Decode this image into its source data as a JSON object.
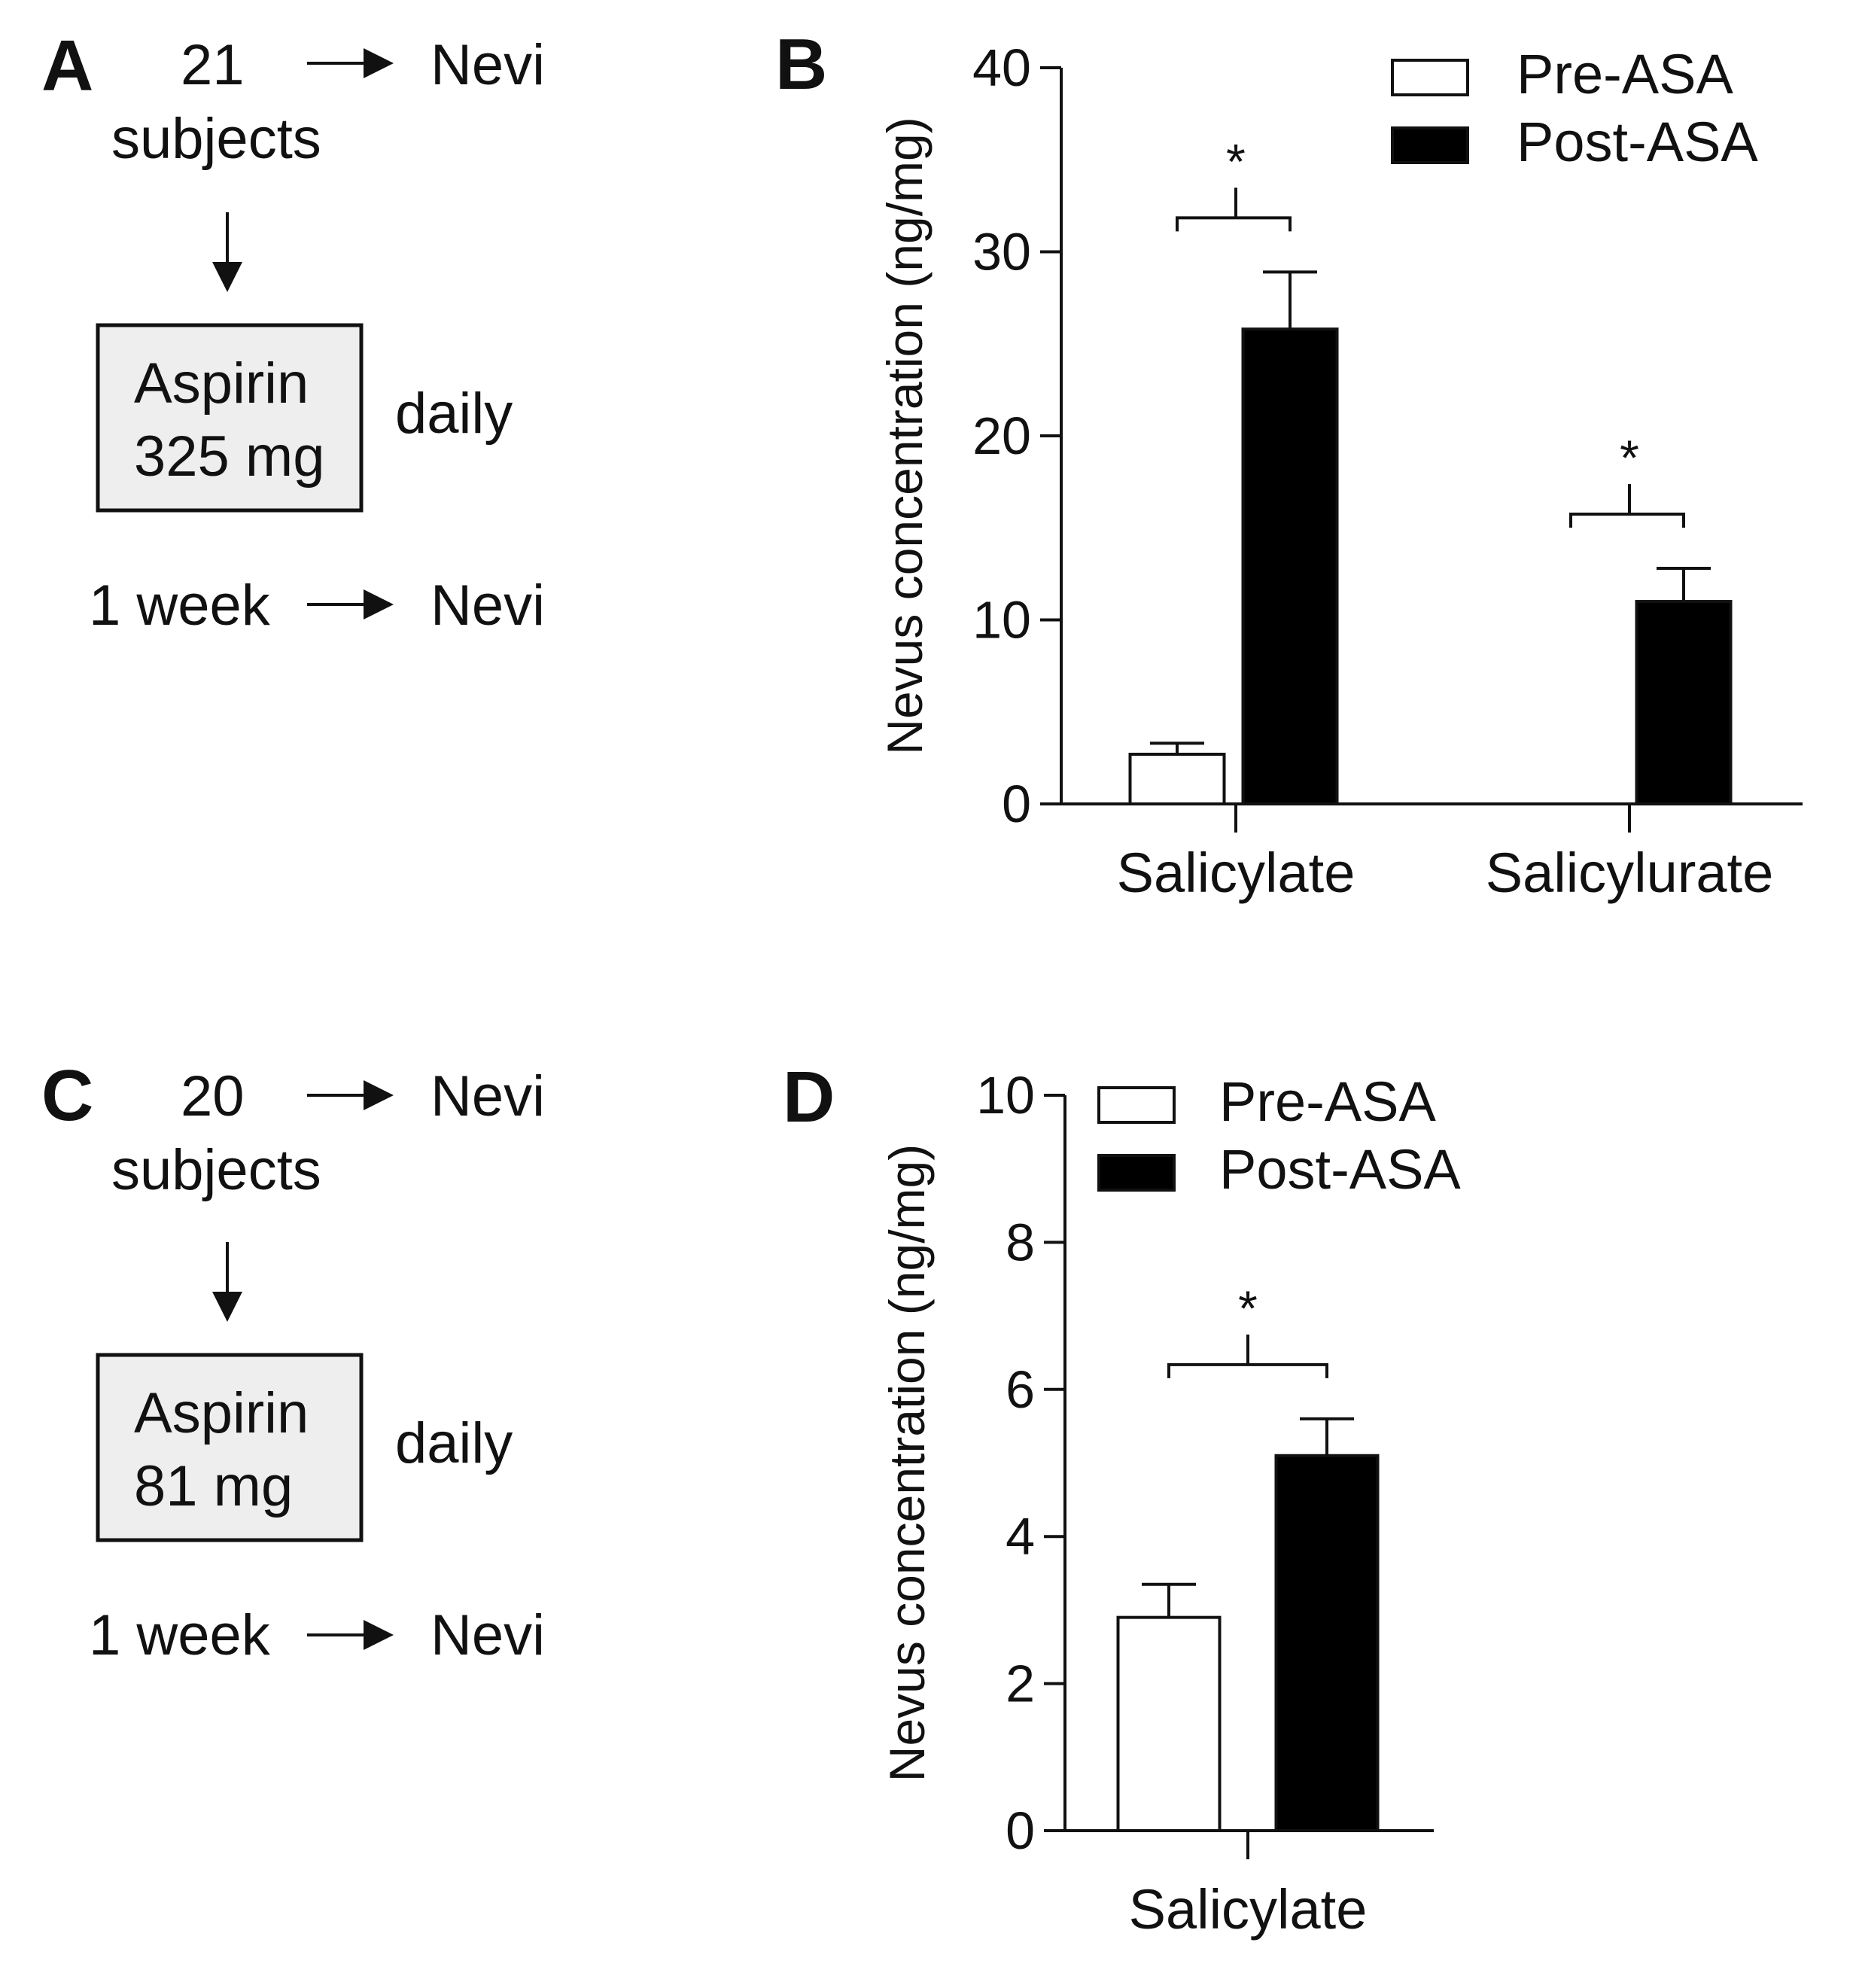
{
  "panels": {
    "A": {
      "letter": "A",
      "count": "21",
      "subjects": "subjects",
      "endpoint_top": "Nevi",
      "box_line1": "Aspirin",
      "box_line2": "325 mg",
      "frequency": "daily",
      "duration": "1 week",
      "endpoint_bottom": "Nevi"
    },
    "C": {
      "letter": "C",
      "count": "20",
      "subjects": "subjects",
      "endpoint_top": "Nevi",
      "box_line1": "Aspirin",
      "box_line2": "81 mg",
      "frequency": "daily",
      "duration": "1 week",
      "endpoint_bottom": "Nevi"
    }
  },
  "colors": {
    "pre": "#ffffff",
    "post": "#000000",
    "box_fill": "#eeeeee",
    "ink": "#111111"
  },
  "chart_data": [
    {
      "panel": "B",
      "type": "bar",
      "ylabel": "Nevus concentration (ng/mg)",
      "ylim": [
        0,
        40
      ],
      "yticks": [
        0,
        10,
        20,
        30,
        40
      ],
      "categories": [
        "Salicylate",
        "Salicylurate"
      ],
      "series": [
        {
          "name": "Pre-ASA",
          "values": [
            2.7,
            0
          ],
          "errors": [
            0.6,
            0
          ]
        },
        {
          "name": "Post-ASA",
          "values": [
            25.8,
            11.0
          ],
          "errors": [
            3.1,
            1.8
          ]
        }
      ],
      "significance": [
        "*",
        "*"
      ],
      "legend": "top-right"
    },
    {
      "panel": "D",
      "type": "bar",
      "ylabel": "Nevus concentration (ng/mg)",
      "ylim": [
        0,
        10
      ],
      "yticks": [
        0,
        2,
        4,
        6,
        8,
        10
      ],
      "categories": [
        "Salicylate"
      ],
      "series": [
        {
          "name": "Pre-ASA",
          "values": [
            2.9
          ],
          "errors": [
            0.45
          ]
        },
        {
          "name": "Post-ASA",
          "values": [
            5.1
          ],
          "errors": [
            0.5
          ]
        }
      ],
      "significance": [
        "*"
      ],
      "legend": "top-left"
    }
  ]
}
